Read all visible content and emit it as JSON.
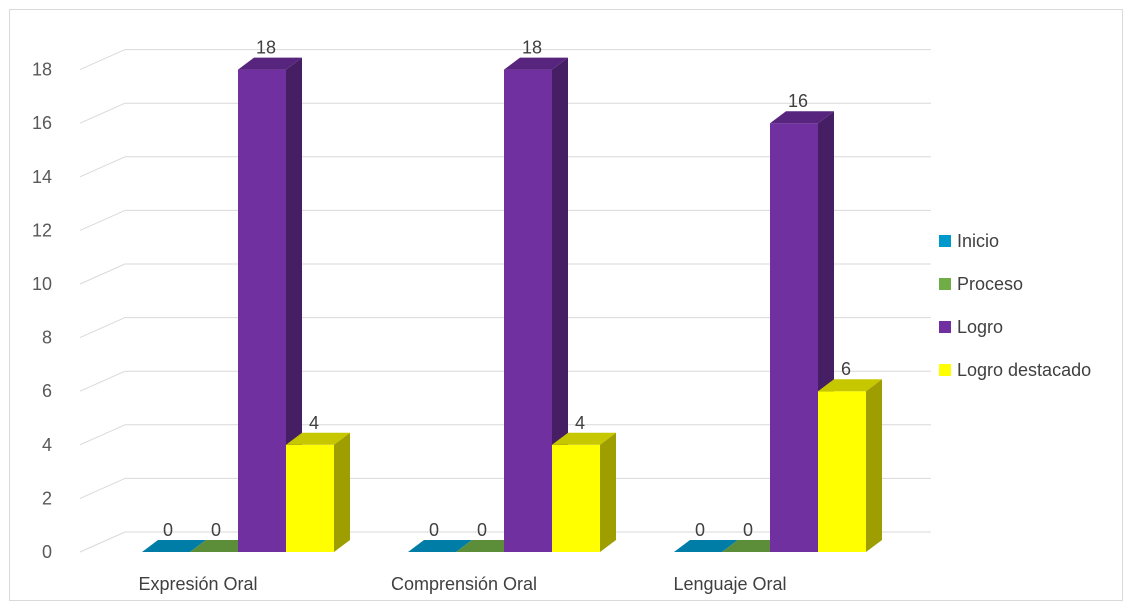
{
  "chart_data": {
    "type": "bar",
    "categories": [
      "Expresión Oral",
      "Comprensión Oral",
      "Lenguaje Oral"
    ],
    "series": [
      {
        "name": "Inicio",
        "values": [
          0,
          0,
          0
        ],
        "color": "#0099cc"
      },
      {
        "name": "Proceso",
        "values": [
          0,
          0,
          0
        ],
        "color": "#70ad47"
      },
      {
        "name": "Logro",
        "values": [
          18,
          18,
          16
        ],
        "color": "#7030a0"
      },
      {
        "name": "Logro destacado",
        "values": [
          4,
          4,
          6
        ],
        "color": "#ffff00"
      }
    ],
    "ylim": [
      0,
      18
    ],
    "yticks": [
      "0",
      "2",
      "4",
      "6",
      "8",
      "10",
      "12",
      "14",
      "16",
      "18"
    ],
    "grid": true,
    "legend": "right",
    "style": "3d-column"
  }
}
